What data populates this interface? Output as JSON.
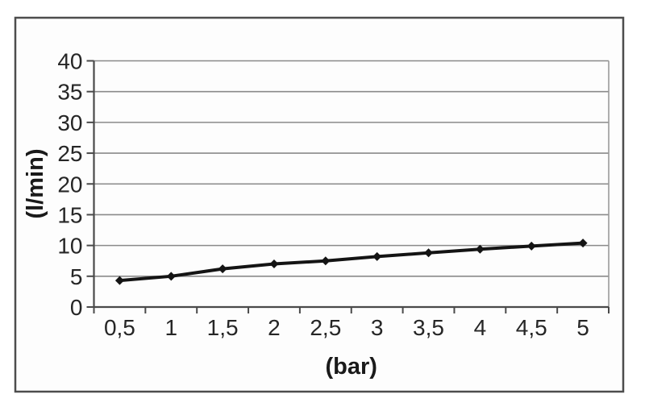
{
  "chart_data": {
    "type": "line",
    "categories": [
      "0,5",
      "1",
      "1,5",
      "2",
      "2,5",
      "3",
      "3,5",
      "4",
      "4,5",
      "5"
    ],
    "series": [
      {
        "values": [
          4.3,
          5,
          6.2,
          7,
          7.5,
          8.2,
          8.8,
          9.4,
          9.9,
          10.4
        ]
      }
    ],
    "xlabel": "(bar)",
    "ylabel": "(l/min)",
    "ylim": [
      0,
      40
    ],
    "ytick_step": 5,
    "ytick_labels": [
      "0",
      "5",
      "10",
      "15",
      "20",
      "25",
      "30",
      "35",
      "40"
    ],
    "grid": true,
    "legend": "none",
    "marker": "diamond",
    "style": {
      "line_color": "#141414",
      "marker_color": "#141414",
      "gridline_color": "#8a8a8a",
      "axis_color": "#4a4a4a",
      "plot_border_color": "#9a9a9a",
      "frame_border_color": "#4d4d4d",
      "background_color": "#ffffff",
      "text_color": "#262626"
    }
  }
}
